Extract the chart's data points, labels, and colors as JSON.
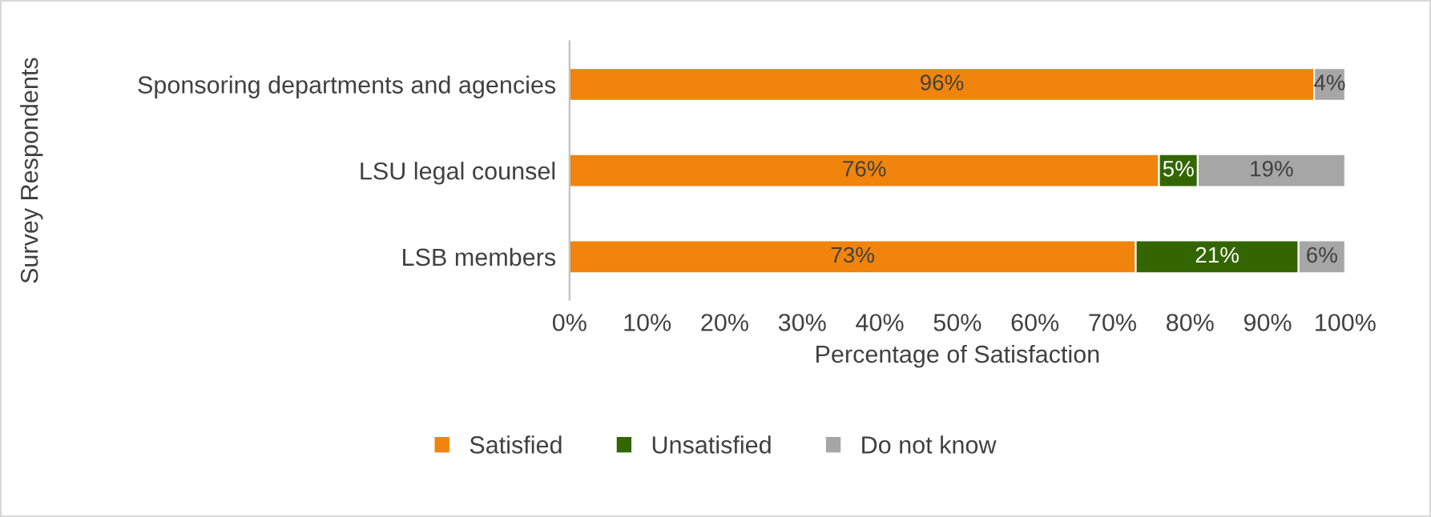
{
  "chart_data": {
    "type": "bar",
    "orientation": "horizontal",
    "stacked": true,
    "xlabel": "Percentage of Satisfaction",
    "ylabel": "Survey Respondents",
    "categories": [
      "Sponsoring departments and agencies",
      "LSU legal counsel",
      "LSB members"
    ],
    "series": [
      {
        "name": "Satisfied",
        "color": "#f0840c",
        "values": [
          96,
          76,
          73
        ],
        "value_labels": [
          "96%",
          "76%",
          "73%"
        ]
      },
      {
        "name": "Unsatisfied",
        "color": "#336600",
        "values": [
          null,
          5,
          21
        ],
        "value_labels": [
          null,
          "5%",
          "21%"
        ]
      },
      {
        "name": "Do not know",
        "color": "#a6a6a6",
        "values": [
          4,
          19,
          6
        ],
        "value_labels": [
          "4%",
          "19%",
          "6%"
        ]
      }
    ],
    "xlim": [
      0,
      100
    ],
    "xticks": [
      {
        "value": 0,
        "label": "0%"
      },
      {
        "value": 10,
        "label": "10%"
      },
      {
        "value": 20,
        "label": "20%"
      },
      {
        "value": 30,
        "label": "30%"
      },
      {
        "value": 40,
        "label": "40%"
      },
      {
        "value": 50,
        "label": "50%"
      },
      {
        "value": 60,
        "label": "60%"
      },
      {
        "value": 70,
        "label": "70%"
      },
      {
        "value": 80,
        "label": "80%"
      },
      {
        "value": 90,
        "label": "90%"
      },
      {
        "value": 100,
        "label": "100%"
      }
    ],
    "grid": false,
    "legend": "bottom"
  }
}
